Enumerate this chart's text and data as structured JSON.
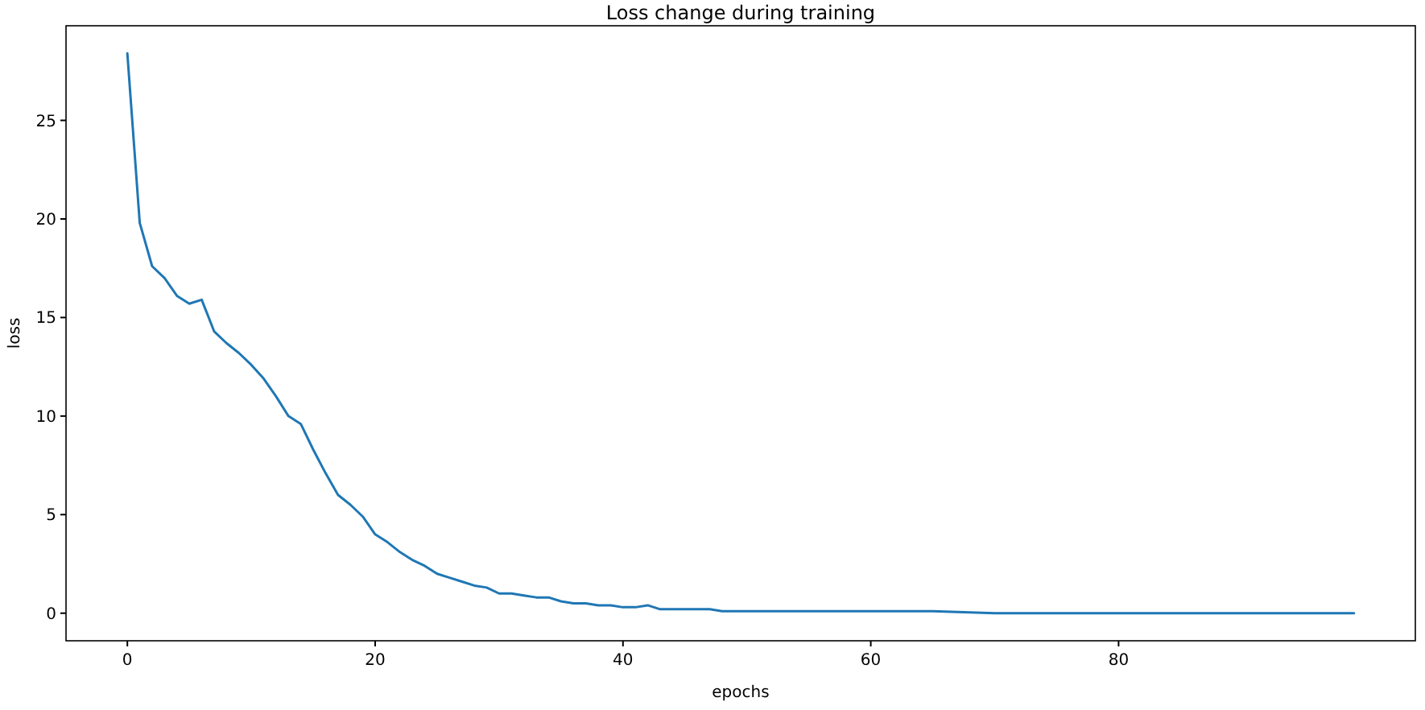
{
  "chart_data": {
    "type": "line",
    "title": "Loss change during training",
    "xlabel": "epochs",
    "ylabel": "loss",
    "x": [
      0,
      1,
      2,
      3,
      4,
      5,
      6,
      7,
      8,
      9,
      10,
      11,
      12,
      13,
      14,
      15,
      16,
      17,
      18,
      19,
      20,
      21,
      22,
      23,
      24,
      25,
      26,
      27,
      28,
      29,
      30,
      31,
      32,
      33,
      34,
      35,
      36,
      37,
      38,
      39,
      40,
      41,
      42,
      43,
      44,
      45,
      46,
      47,
      48,
      49,
      50,
      55,
      60,
      63,
      65,
      70,
      75,
      80,
      85,
      90,
      95,
      99
    ],
    "series": [
      {
        "color": "#1f77b4",
        "values": [
          28.4,
          19.8,
          17.6,
          17.0,
          16.1,
          15.7,
          15.9,
          14.3,
          13.7,
          13.2,
          12.6,
          11.9,
          11.0,
          10.0,
          9.6,
          8.3,
          7.1,
          6.0,
          5.5,
          4.9,
          4.0,
          3.6,
          3.1,
          2.7,
          2.4,
          2.0,
          1.8,
          1.6,
          1.4,
          1.3,
          1.0,
          1.0,
          0.9,
          0.8,
          0.8,
          0.6,
          0.5,
          0.5,
          0.4,
          0.4,
          0.3,
          0.3,
          0.4,
          0.2,
          0.2,
          0.2,
          0.2,
          0.2,
          0.1,
          0.1,
          0.1,
          0.1,
          0.1,
          0.1,
          0.1,
          0.0,
          0.0,
          0.0,
          0.0,
          0.0,
          0.0,
          0.0
        ]
      }
    ],
    "xlim": [
      -4.95,
      103.95
    ],
    "xticks": [
      0,
      20,
      40,
      60,
      80
    ],
    "ylim": [
      -1.4,
      29.8
    ],
    "yticks": [
      0,
      5,
      10,
      15,
      20,
      25
    ],
    "marker": "none",
    "line_style": "solid"
  }
}
